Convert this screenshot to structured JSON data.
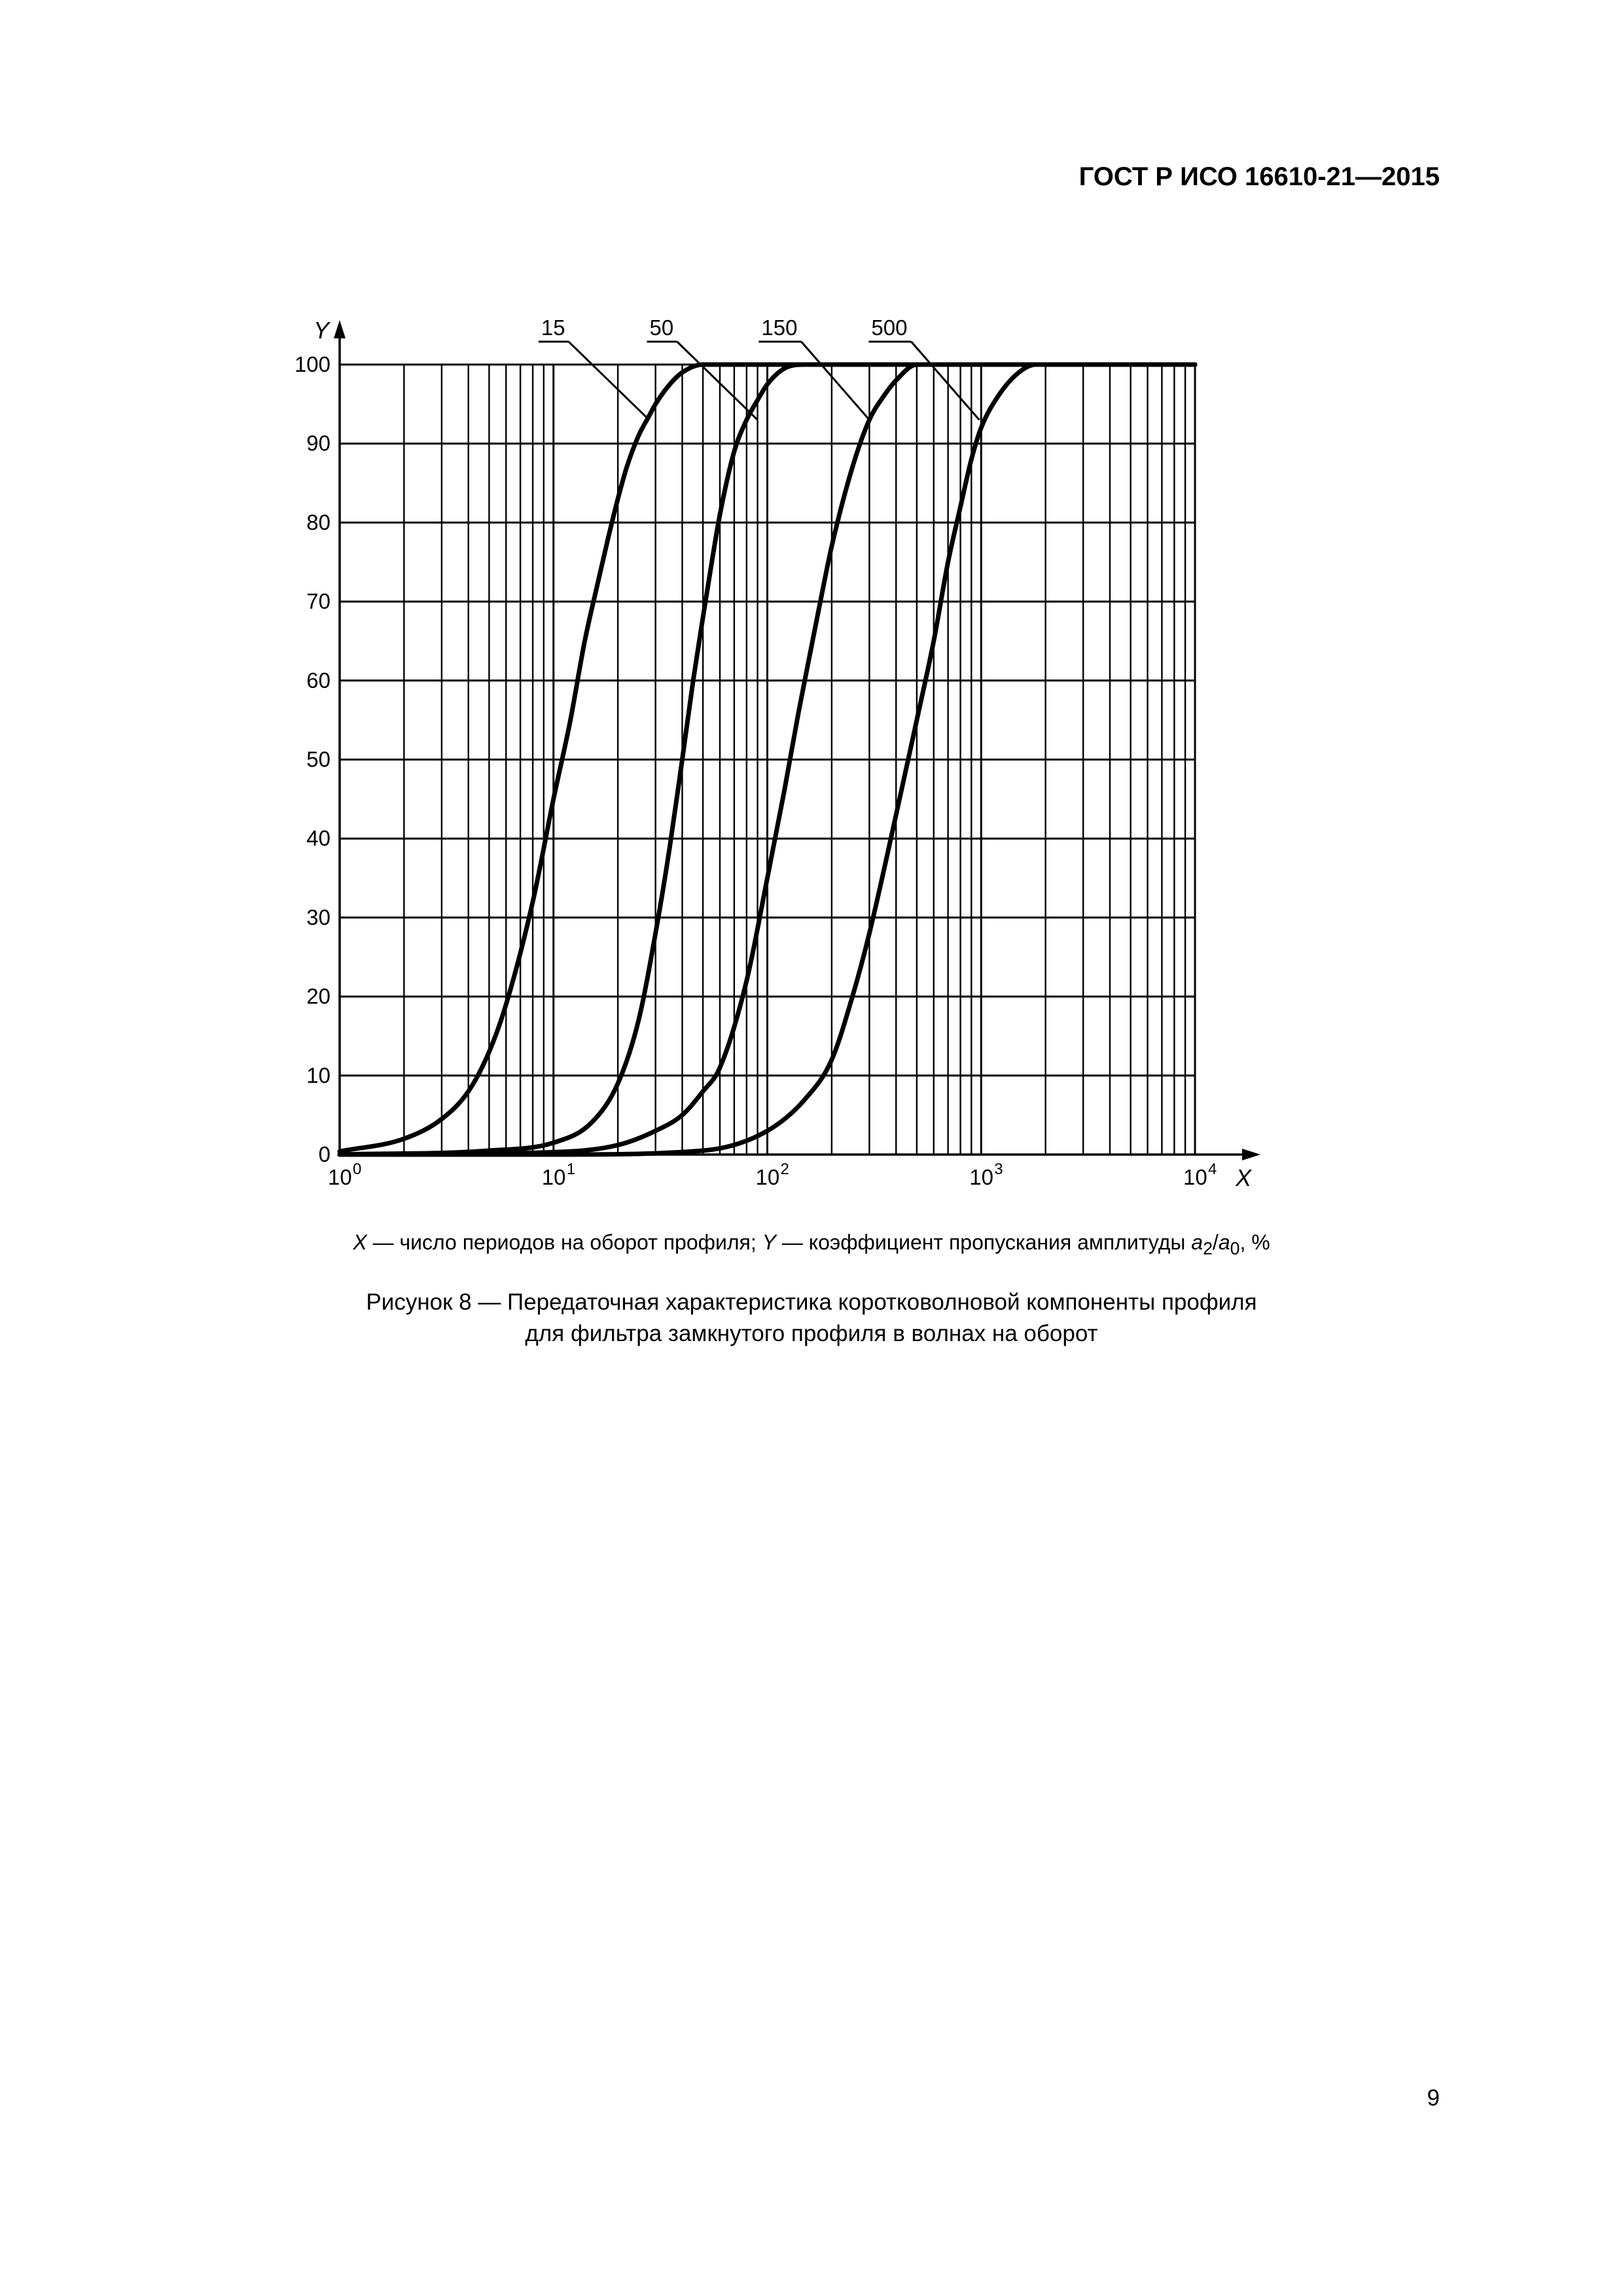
{
  "header": {
    "standard_id": "ГОСТ Р ИСО 16610-21—2015"
  },
  "legend": {
    "x_symbol": "X",
    "x_text": " — число периодов на оборот профиля; ",
    "y_symbol": "Y",
    "y_text": " — коэффициент пропускания амплитуды ",
    "ratio_num_base": "a",
    "ratio_num_sub": "2",
    "ratio_slash": "/",
    "ratio_den_base": "a",
    "ratio_den_sub": "0",
    "ratio_unit": ", %"
  },
  "caption": {
    "line1": "Рисунок 8 — Передаточная характеристика коротковолновой компоненты профиля",
    "line2": "для фильтра замкнутого профиля в волнах на оборот"
  },
  "page_number": "9",
  "colors": {
    "ink": "#000000",
    "background": "#ffffff"
  },
  "chart_data": {
    "type": "line",
    "title": "",
    "xlabel": "X",
    "ylabel": "Y",
    "x_scale": "log",
    "xlim": [
      1,
      10000
    ],
    "ylim": [
      0,
      100
    ],
    "x_tick_labels": [
      {
        "base": "10",
        "exp": "0",
        "value": 1
      },
      {
        "base": "10",
        "exp": "1",
        "value": 10
      },
      {
        "base": "10",
        "exp": "2",
        "value": 100
      },
      {
        "base": "10",
        "exp": "3",
        "value": 1000
      },
      {
        "base": "10",
        "exp": "4",
        "value": 10000
      }
    ],
    "y_ticks": [
      0,
      10,
      20,
      30,
      40,
      50,
      60,
      70,
      80,
      90,
      100
    ],
    "y_tick_labels": [
      "0",
      "10",
      "20",
      "30",
      "40",
      "50",
      "60",
      "70",
      "80",
      "90",
      "100"
    ],
    "grid": true,
    "series": [
      {
        "name": "15",
        "x": [
          1,
          2,
          3,
          4,
          5,
          6,
          8,
          10,
          12,
          14,
          16,
          18,
          20,
          22,
          25,
          28,
          30,
          35,
          40,
          50,
          100,
          10000
        ],
        "y": [
          0.4,
          2,
          4.5,
          8,
          13,
          19,
          32,
          45,
          55,
          65,
          72,
          78,
          83,
          87,
          91,
          93.5,
          95,
          97.5,
          99,
          100,
          100,
          100
        ]
      },
      {
        "name": "50",
        "x": [
          1,
          5,
          10,
          15,
          20,
          25,
          30,
          35,
          40,
          45,
          50,
          55,
          60,
          70,
          80,
          90,
          100,
          120,
          150,
          200,
          10000
        ],
        "y": [
          0,
          0.5,
          1.5,
          4,
          9,
          17,
          28,
          39,
          50,
          60,
          68,
          75,
          81,
          89,
          93,
          95.5,
          97.5,
          99.5,
          100,
          100,
          100
        ]
      },
      {
        "name": "150",
        "x": [
          1,
          10,
          20,
          30,
          40,
          50,
          60,
          80,
          100,
          120,
          140,
          160,
          180,
          200,
          250,
          300,
          350,
          400,
          500,
          600,
          10000
        ],
        "y": [
          0,
          0.3,
          1.2,
          3,
          5,
          8,
          11,
          22,
          35,
          46,
          56,
          64,
          71,
          77,
          87,
          93,
          96,
          98,
          100,
          100,
          100
        ]
      },
      {
        "name": "500",
        "x": [
          1,
          10,
          50,
          100,
          150,
          200,
          250,
          300,
          400,
          500,
          600,
          700,
          800,
          900,
          1000,
          1200,
          1500,
          1800,
          2000,
          10000
        ],
        "y": [
          0,
          0,
          0.5,
          3,
          7,
          12,
          20,
          28,
          43,
          55,
          65,
          75,
          82,
          88,
          92,
          96,
          99,
          100,
          100,
          100
        ]
      }
    ],
    "curve_labels": [
      {
        "series": "15",
        "text": "15",
        "x_target": 28,
        "y_target": 93
      },
      {
        "series": "50",
        "text": "50",
        "x_target": 90,
        "y_target": 93
      },
      {
        "series": "150",
        "text": "150",
        "x_target": 300,
        "y_target": 93
      },
      {
        "series": "500",
        "text": "500",
        "x_target": 980,
        "y_target": 93
      }
    ]
  }
}
